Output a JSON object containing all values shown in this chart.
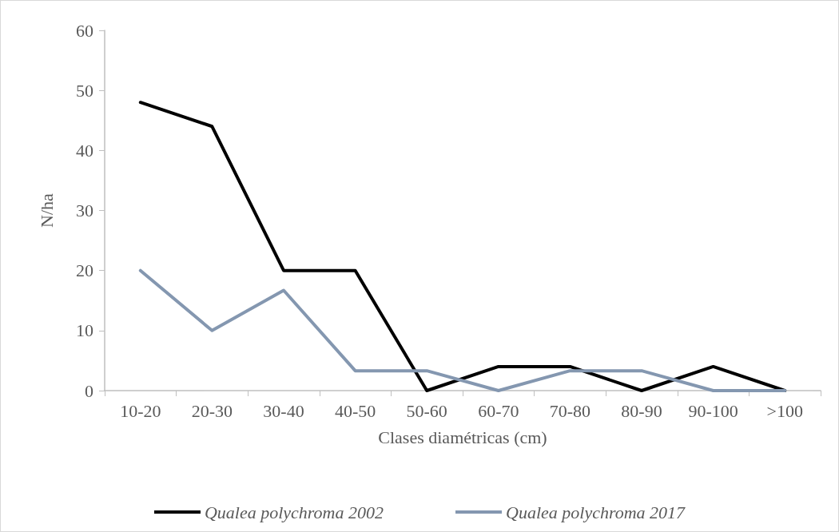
{
  "chart_data": {
    "type": "line",
    "xlabel": "Clases diamétricas (cm)",
    "ylabel": "N/ha",
    "categories": [
      "10-20",
      "20-30",
      "30-40",
      "40-50",
      "50-60",
      "60-70",
      "70-80",
      "80-90",
      "90-100",
      ">100"
    ],
    "series": [
      {
        "name": "Qualea polychroma 2002",
        "color": "#000000",
        "values": [
          48,
          44,
          20,
          20,
          0,
          4,
          4,
          0,
          4,
          0
        ]
      },
      {
        "name": "Qualea polychroma 2017",
        "color": "#8497b0",
        "values": [
          20,
          10,
          16.7,
          3.3,
          3.3,
          0,
          3.3,
          3.3,
          0,
          0
        ]
      }
    ],
    "ylim": [
      0,
      60
    ],
    "yticks": [
      0,
      10,
      20,
      30,
      40,
      50,
      60
    ],
    "grid": false,
    "legend": "bottom",
    "marker": "none",
    "line_style": "solid"
  }
}
